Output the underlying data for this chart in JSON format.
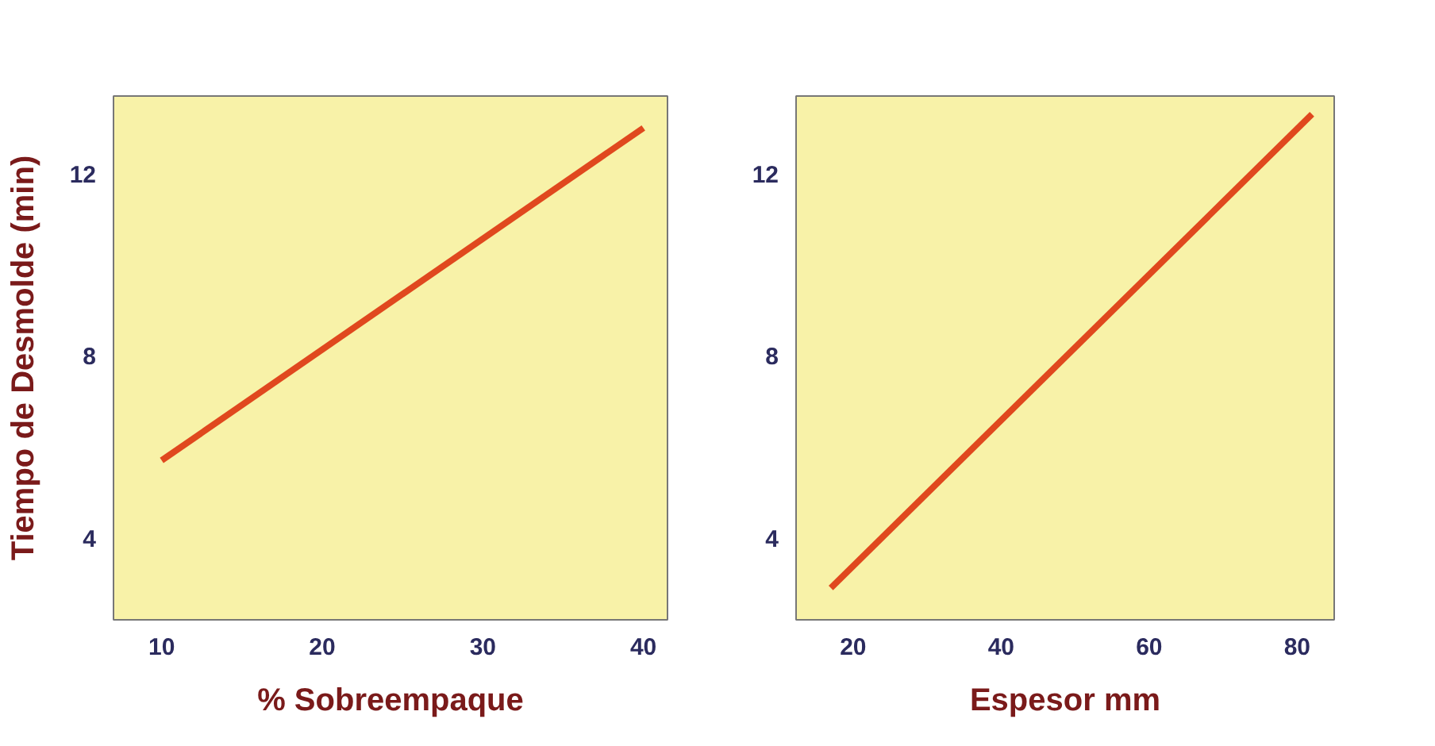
{
  "chart_data": [
    {
      "type": "line",
      "xlabel": "% Sobreempaque",
      "ylabel": "Tiempo de Desmolde (min)",
      "xlim": [
        7,
        41.5
      ],
      "ylim": [
        2.2,
        13.7
      ],
      "xticks": [
        10,
        20,
        30,
        40
      ],
      "yticks": [
        4,
        8,
        12
      ],
      "grid": false,
      "series": [
        {
          "color": "#e0481e",
          "x": [
            10,
            40
          ],
          "values": [
            5.7,
            13.0
          ]
        }
      ]
    },
    {
      "type": "line",
      "xlabel": "Espesor mm",
      "xlim": [
        12.3,
        85
      ],
      "ylim": [
        2.2,
        13.7
      ],
      "xticks": [
        20,
        40,
        60,
        80
      ],
      "yticks": [
        4,
        8,
        12
      ],
      "grid": false,
      "series": [
        {
          "color": "#e0481e",
          "x": [
            17,
            82
          ],
          "values": [
            2.9,
            13.3
          ]
        }
      ]
    }
  ]
}
